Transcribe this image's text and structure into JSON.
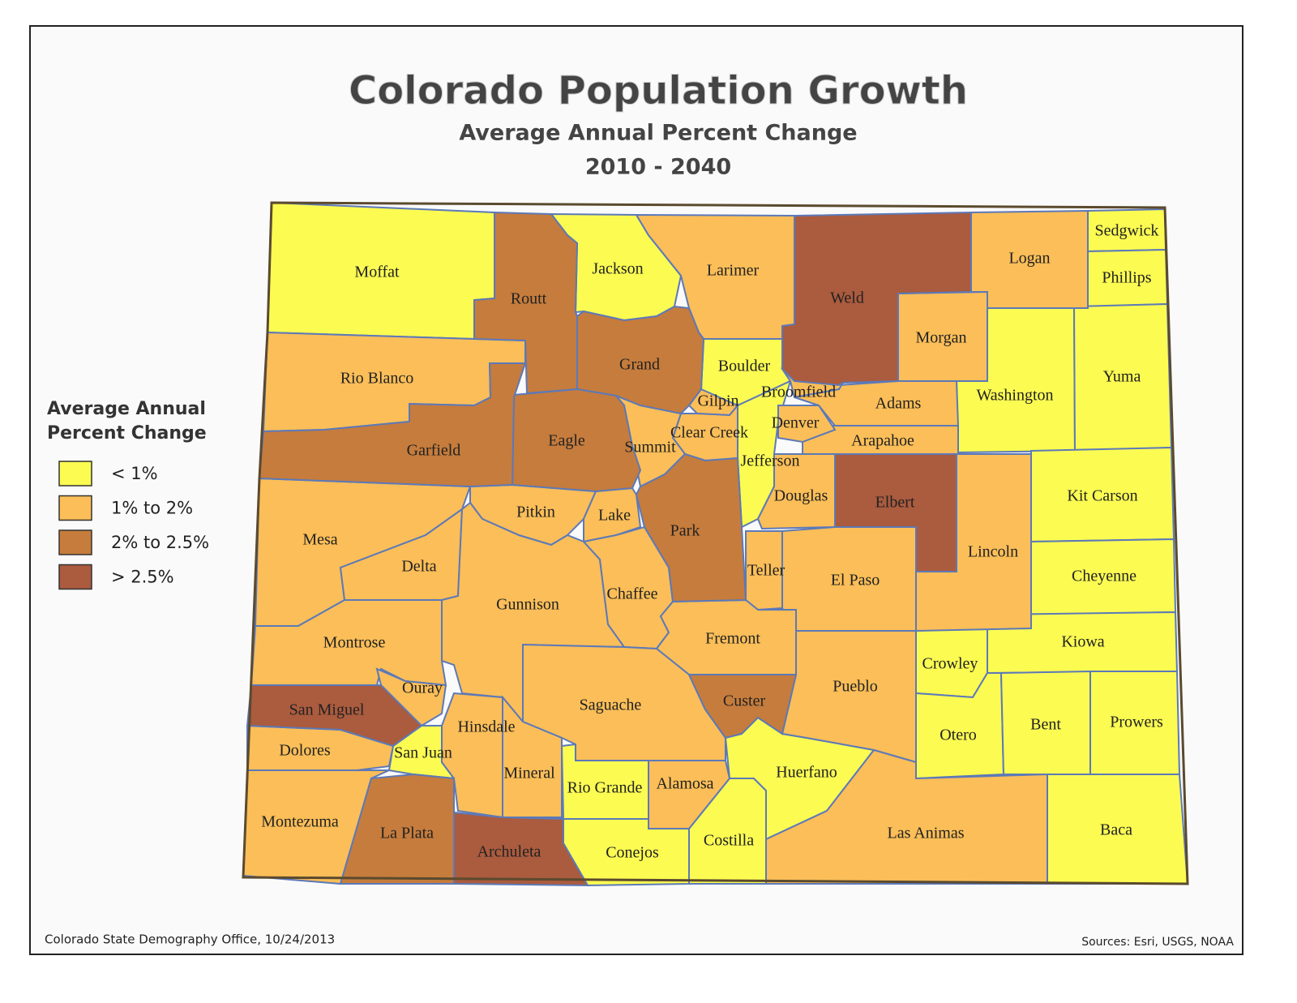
{
  "title": "Colorado Population Growth",
  "subtitle": "Average Annual Percent Change",
  "period": "2010 - 2040",
  "legend": {
    "title": "Average Annual Percent Change",
    "classes": [
      {
        "label": "< 1%",
        "color": "#fbfb52",
        "counties": [
          "Moffat",
          "Jackson",
          "Boulder",
          "Jefferson",
          "Sedgwick",
          "Phillips",
          "Washington",
          "Yuma",
          "Kit Carson",
          "Cheyenne",
          "Kiowa",
          "Crowley",
          "Otero",
          "Bent",
          "Prowers",
          "Baca",
          "San Juan",
          "Rio Grande",
          "Conejos",
          "Costilla",
          "Huerfano"
        ]
      },
      {
        "label": "1% to 2%",
        "color": "#fbbe58",
        "counties": [
          "Larimer",
          "Logan",
          "Morgan",
          "Rio Blanco",
          "Adams",
          "Arapahoe",
          "Broomfield",
          "Denver",
          "Gilpin",
          "Clear Creek",
          "Summit",
          "Douglas",
          "Lincoln",
          "Mesa",
          "Delta",
          "Pitkin",
          "Lake",
          "Gunnison",
          "Chaffee",
          "Teller",
          "El Paso",
          "Fremont",
          "Montrose",
          "Ouray",
          "Pueblo",
          "Saguache",
          "Hinsdale",
          "Dolores",
          "Mineral",
          "Alamosa",
          "Montezuma",
          "Las Animas"
        ]
      },
      {
        "label": "2% to 2.5%",
        "color": "#c67c3c",
        "counties": [
          "Routt",
          "Grand",
          "Eagle",
          "Garfield",
          "Park",
          "Custer",
          "La Plata"
        ]
      },
      {
        "label": "> 2.5%",
        "color": "#ab5b3e",
        "counties": [
          "Weld",
          "Elbert",
          "San Miguel",
          "Archuleta"
        ]
      }
    ]
  },
  "credit": "Colorado State Demography Office, 10/24/2013",
  "sources": "Sources: Esri, USGS, NOAA"
}
